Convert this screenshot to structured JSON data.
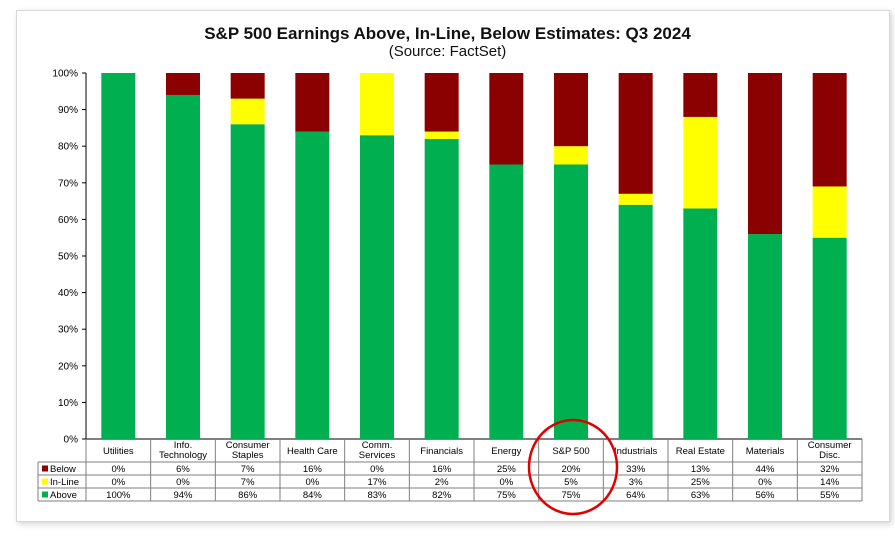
{
  "chart_data": {
    "type": "bar",
    "stacked": true,
    "title": "S&P 500 Earnings Above, In-Line, Below Estimates: Q3 2024",
    "subtitle": "(Source: FactSet)",
    "ylim": [
      0,
      100
    ],
    "yticks": [
      "0%",
      "10%",
      "20%",
      "30%",
      "40%",
      "50%",
      "60%",
      "70%",
      "80%",
      "90%",
      "100%"
    ],
    "categories": [
      [
        "Utilities"
      ],
      [
        "Info.",
        "Technology"
      ],
      [
        "Consumer",
        "Staples"
      ],
      [
        "Health Care"
      ],
      [
        "Comm.",
        "Services"
      ],
      [
        "Financials"
      ],
      [
        "Energy"
      ],
      [
        "S&P 500"
      ],
      [
        "Industrials"
      ],
      [
        "Real Estate"
      ],
      [
        "Materials"
      ],
      [
        "Consumer",
        "Disc."
      ]
    ],
    "series": [
      {
        "name": "Above",
        "color": "#00b050",
        "values": [
          100,
          94,
          86,
          84,
          83,
          82,
          75,
          75,
          64,
          63,
          56,
          55
        ]
      },
      {
        "name": "In-Line",
        "color": "#ffff00",
        "values": [
          0,
          0,
          7,
          0,
          17,
          2,
          0,
          5,
          3,
          25,
          0,
          14
        ]
      },
      {
        "name": "Below",
        "color": "#8b0000",
        "values": [
          0,
          6,
          7,
          16,
          0,
          16,
          25,
          20,
          33,
          13,
          44,
          32
        ]
      }
    ],
    "table_order": [
      "Below",
      "In-Line",
      "Above"
    ],
    "grid": false,
    "legend": "data-table-left",
    "annotation": {
      "type": "circle",
      "color": "#e00000",
      "target_category": "S&P 500"
    }
  }
}
